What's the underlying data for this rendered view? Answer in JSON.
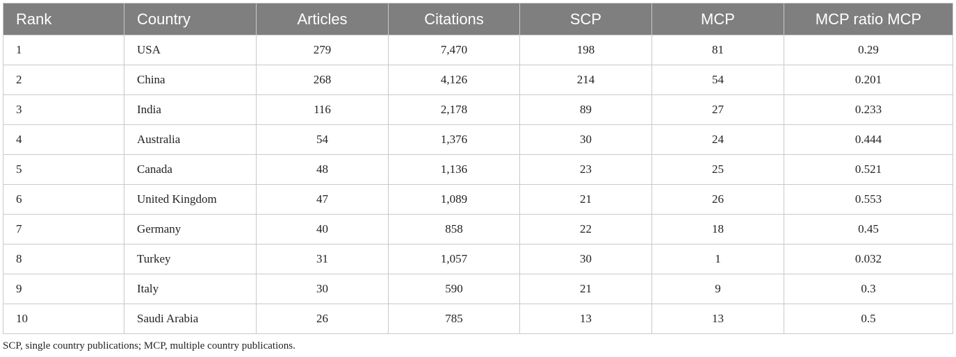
{
  "table": {
    "columns": [
      "Rank",
      "Country",
      "Articles",
      "Citations",
      "SCP",
      "MCP",
      "MCP ratio MCP"
    ],
    "rows": [
      [
        "1",
        "USA",
        "279",
        "7,470",
        "198",
        "81",
        "0.29"
      ],
      [
        "2",
        "China",
        "268",
        "4,126",
        "214",
        "54",
        "0.201"
      ],
      [
        "3",
        "India",
        "116",
        "2,178",
        "89",
        "27",
        "0.233"
      ],
      [
        "4",
        "Australia",
        "54",
        "1,376",
        "30",
        "24",
        "0.444"
      ],
      [
        "5",
        "Canada",
        "48",
        "1,136",
        "23",
        "25",
        "0.521"
      ],
      [
        "6",
        "United Kingdom",
        "47",
        "1,089",
        "21",
        "26",
        "0.553"
      ],
      [
        "7",
        "Germany",
        "40",
        "858",
        "22",
        "18",
        "0.45"
      ],
      [
        "8",
        "Turkey",
        "31",
        "1,057",
        "30",
        "1",
        "0.032"
      ],
      [
        "9",
        "Italy",
        "30",
        "590",
        "21",
        "9",
        "0.3"
      ],
      [
        "10",
        "Saudi Arabia",
        "26",
        "785",
        "13",
        "13",
        "0.5"
      ]
    ]
  },
  "footnote": "SCP, single country publications; MCP, multiple country publications.",
  "colors": {
    "header_bg": "#7f7f7f",
    "header_text": "#ffffff",
    "grid": "#c9c9c9"
  }
}
